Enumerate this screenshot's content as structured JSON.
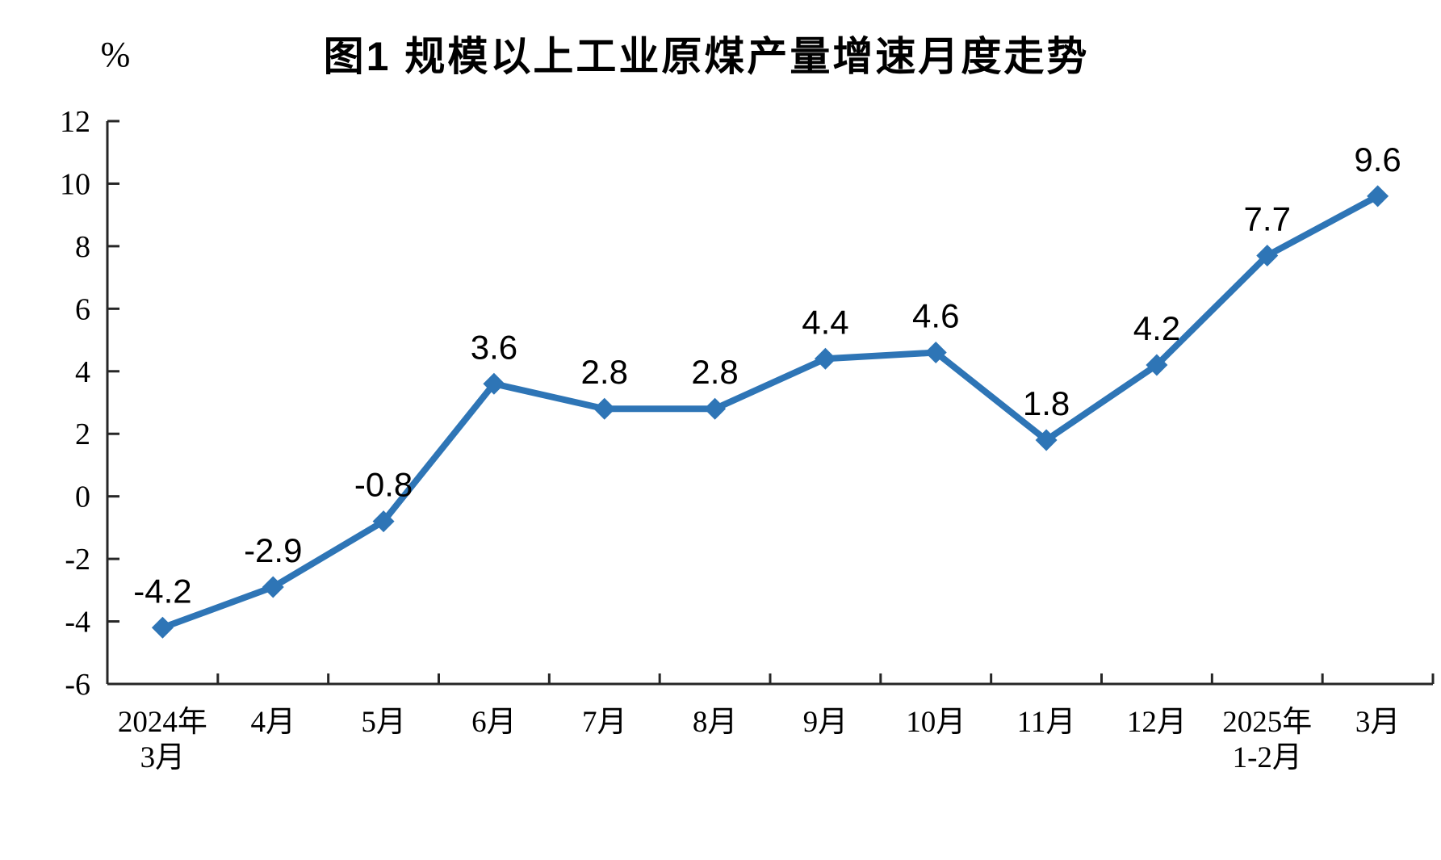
{
  "figure": {
    "title": "图1 规模以上工业原煤产量增速月度走势",
    "unit_label": "%"
  },
  "chart_data": {
    "type": "line",
    "title": "图1 规模以上工业原煤产量增速月度走势",
    "xlabel": "",
    "ylabel": "%",
    "categories": [
      [
        "2024年",
        "3月"
      ],
      [
        "4月"
      ],
      [
        "5月"
      ],
      [
        "6月"
      ],
      [
        "7月"
      ],
      [
        "8月"
      ],
      [
        "9月"
      ],
      [
        "10月"
      ],
      [
        "11月"
      ],
      [
        "12月"
      ],
      [
        "2025年",
        "1-2月"
      ],
      [
        "3月"
      ]
    ],
    "values": [
      -4.2,
      -2.9,
      -0.8,
      3.6,
      2.8,
      2.8,
      4.4,
      4.6,
      1.8,
      4.2,
      7.7,
      9.6
    ],
    "data_labels": [
      "-4.2",
      "-2.9",
      "-0.8",
      "3.6",
      "2.8",
      "2.8",
      "4.4",
      "4.6",
      "1.8",
      "4.2",
      "7.7",
      "9.6"
    ],
    "ylim": [
      -6,
      12
    ],
    "yticks": [
      12,
      10,
      8,
      6,
      4,
      2,
      0,
      -2,
      -4,
      -6
    ],
    "grid": false,
    "legend": null,
    "marker": "diamond",
    "line_color": "#2E75B6",
    "axis_color": "#262626",
    "text_color": "#000000"
  }
}
